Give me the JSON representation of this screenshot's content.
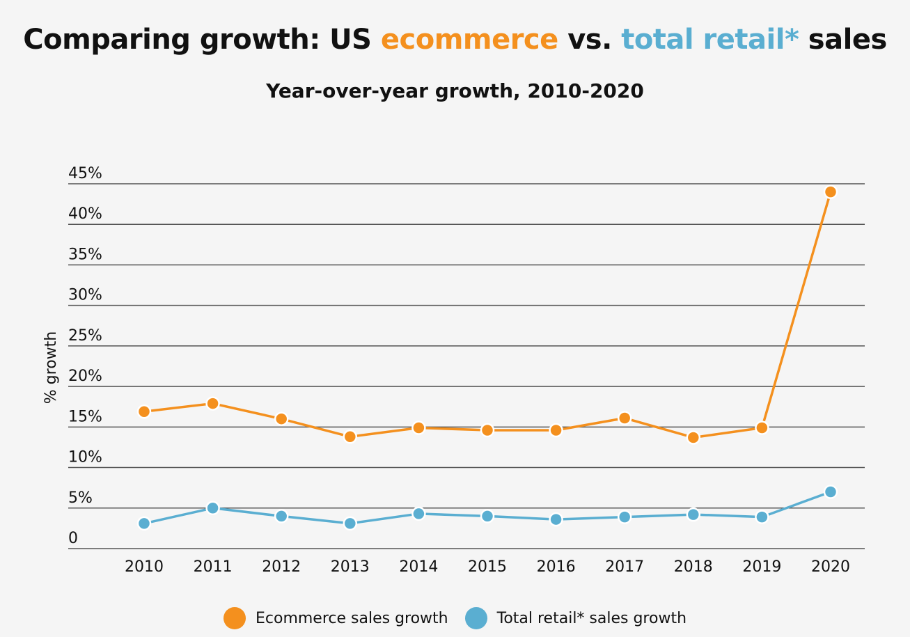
{
  "title": {
    "part1": "Comparing growth: US ",
    "ecommerce": "ecommerce",
    "part2": " vs. ",
    "total_retail": "total retail*",
    "part3": " sales"
  },
  "subtitle": "Year-over-year growth, 2010-2020",
  "colors": {
    "ecommerce": "#f4901e",
    "retail": "#5aaed1",
    "grid": "#555555",
    "background": "#f5f5f5"
  },
  "chart_data": {
    "type": "line",
    "title": "Comparing growth: US ecommerce vs. total retail* sales",
    "subtitle": "Year-over-year growth, 2010-2020",
    "xlabel": "",
    "ylabel": "% growth",
    "x": [
      "2010",
      "2011",
      "2012",
      "2013",
      "2014",
      "2015",
      "2016",
      "2017",
      "2018",
      "2019",
      "2020"
    ],
    "ylim": [
      0,
      45
    ],
    "yticks": [
      0,
      5,
      10,
      15,
      20,
      25,
      30,
      35,
      40,
      45
    ],
    "ytick_labels": [
      "0",
      "5%",
      "10%",
      "15%",
      "20%",
      "25%",
      "30%",
      "35%",
      "40%",
      "45%"
    ],
    "grid": true,
    "legend_position": "bottom-center",
    "series": [
      {
        "name": "Ecommerce sales growth",
        "color": "#f4901e",
        "values": [
          16.9,
          17.9,
          16.0,
          13.8,
          14.9,
          14.6,
          14.6,
          16.1,
          13.7,
          14.9,
          44.0
        ]
      },
      {
        "name": "Total retail* sales growth",
        "color": "#5aaed1",
        "values": [
          3.1,
          5.0,
          4.0,
          3.1,
          4.3,
          4.0,
          3.6,
          3.9,
          4.2,
          3.9,
          7.0
        ]
      }
    ]
  }
}
